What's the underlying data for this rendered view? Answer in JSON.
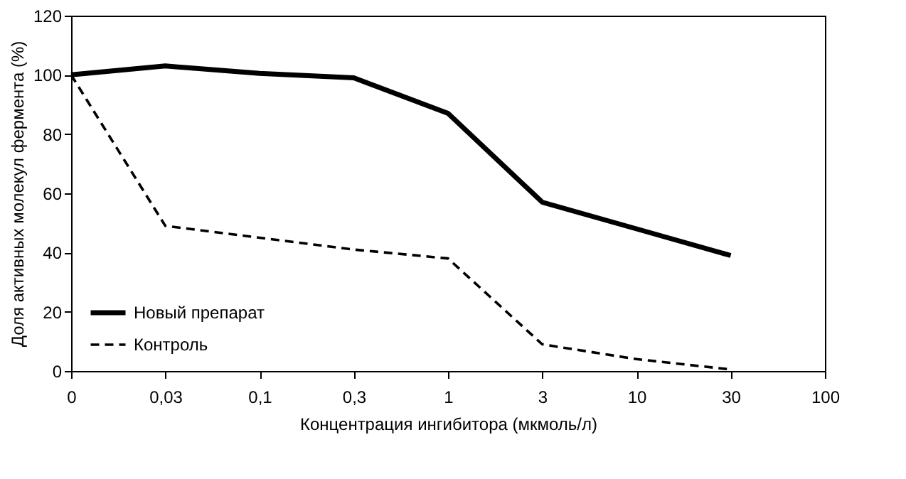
{
  "chart_data": {
    "type": "line",
    "xlabel": "Концентрация ингибитора (мкмоль/л)",
    "ylabel": "Доля активных молекул фермента (%)",
    "categories": [
      "0",
      "0,03",
      "0,1",
      "0,3",
      "1",
      "3",
      "10",
      "30",
      "100"
    ],
    "series": [
      {
        "name": "Новый препарат",
        "color": "#000000",
        "line_style": "solid",
        "values": [
          100,
          103,
          100.5,
          99,
          87,
          57,
          48,
          39,
          null
        ]
      },
      {
        "name": "Контроль",
        "color": "#000000",
        "line_style": "dashed",
        "values": [
          100,
          49,
          45,
          41,
          38,
          9,
          4,
          0.5,
          null
        ]
      }
    ],
    "ylim": [
      0,
      120
    ],
    "yticks": [
      0,
      20,
      40,
      60,
      80,
      100,
      120
    ],
    "grid": false,
    "legend": "bottom left"
  }
}
